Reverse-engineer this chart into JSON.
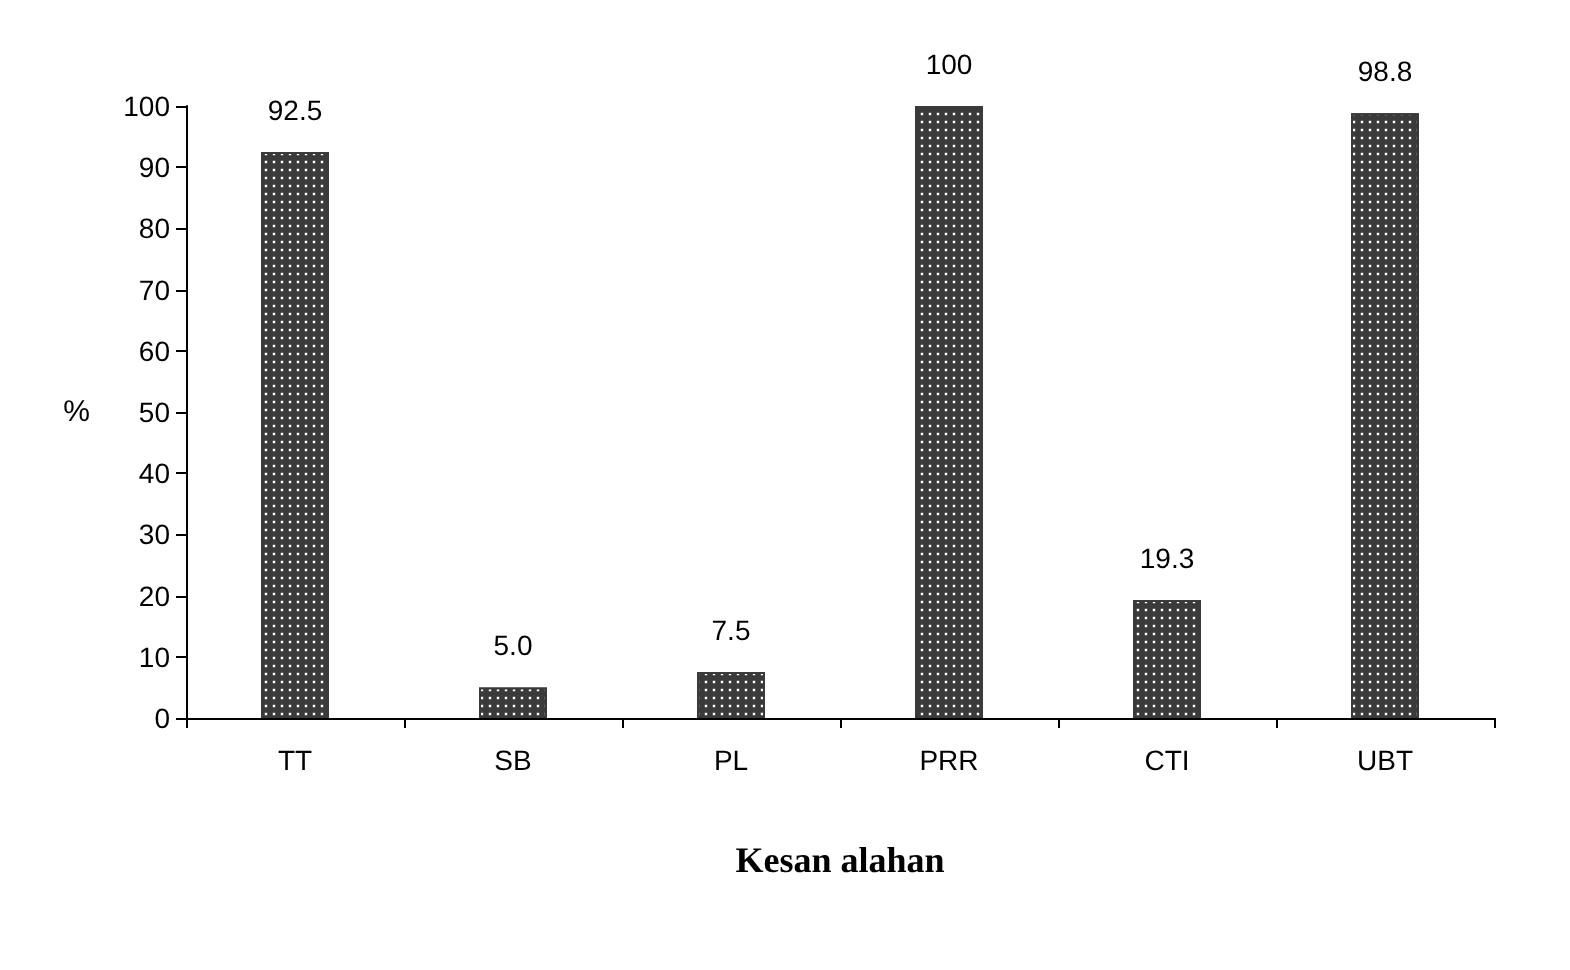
{
  "chart_data": {
    "type": "bar",
    "xlabel": "Kesan alahan",
    "ylabel": "%",
    "categories": [
      "TT",
      "SB",
      "PL",
      "PRR",
      "CTI",
      "UBT"
    ],
    "values": [
      92.5,
      5.0,
      7.5,
      100,
      19.3,
      98.8
    ],
    "value_labels": [
      "92.5",
      "5.0",
      "7.5",
      "100",
      "19.3",
      "98.8"
    ],
    "color": "#3a3a3a",
    "ylim": [
      0,
      100
    ],
    "yticks": [
      0,
      10,
      20,
      30,
      40,
      50,
      60,
      70,
      80,
      90,
      100
    ],
    "grid": false
  }
}
